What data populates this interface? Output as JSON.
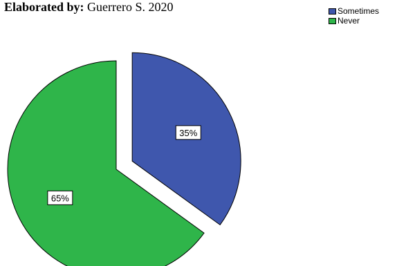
{
  "credit": {
    "label": "Elaborated by:",
    "text": "Guerrero S. 2020"
  },
  "chart_data": {
    "type": "pie",
    "categories": [
      "Sometimes",
      "Never"
    ],
    "values": [
      35,
      65
    ],
    "data_labels": [
      "35%",
      "65%"
    ],
    "colors": [
      "#3f57ad",
      "#2fb54a"
    ],
    "exploded": "Sometimes",
    "legend": "top-right",
    "title": ""
  }
}
